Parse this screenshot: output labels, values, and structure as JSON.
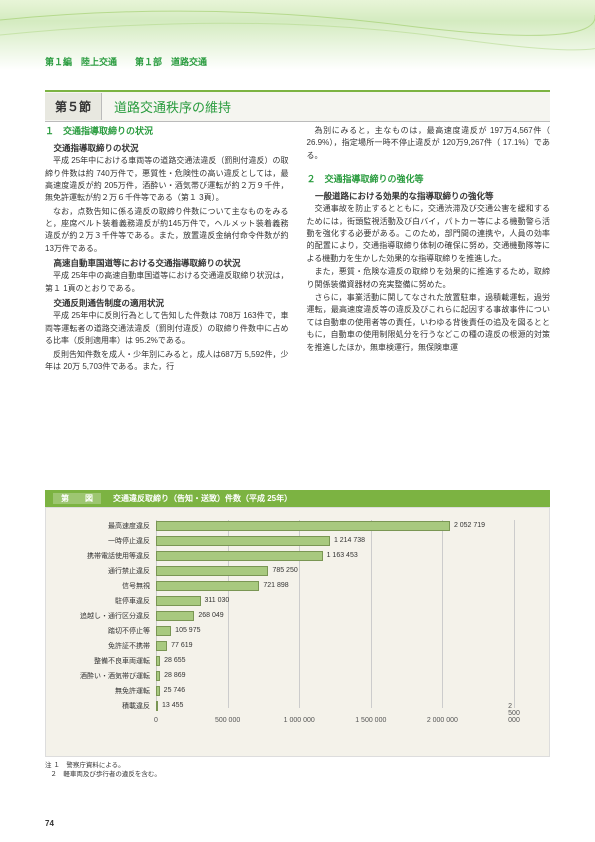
{
  "breadcrumb": "第１編　陸上交通　　第１部　道路交通",
  "section": {
    "num": "第５節",
    "title": "道路交通秩序の維持"
  },
  "left_col": {
    "h1": "１　交通指導取締りの状況",
    "s1": "交通指導取締りの状況",
    "p1": "平成 25年中における車両等の道路交通法違反（罰則付違反）の取締り件数は約 740万件で，悪質性・危険性の高い違反としては，最高速度違反が約 205万件，酒酔い・酒気帯び運転が約２万９千件，無免許運転が約２万６千件等である（第１ 3頁）。",
    "p2": "なお，点数告知に係る違反の取締り件数について主なものをみると，座席ベルト装着義務違反が約145万件で，ヘルメット装着義務違反が約２万３千件等である。また，放置違反金納付命令件数が約 13万件である。",
    "s2": "高速自動車国道等における交通指導取締りの状況",
    "p3": "平成 25年中の高速自動車国道等における交通違反取締り状況は，第１ 1頁のとおりである。",
    "s3": "交通反則通告制度の適用状況",
    "p4": "平成 25年中に反則行為として告知した件数は 708万 163件で，車両等運転者の道路交通法違反（罰則付違反）の取締り件数中に占める比率（反則適用率）は 95.2%である。",
    "p5": "反則告知件数を成人・少年別にみると，成人は687万 5,592件，少年は 20万 5,703件である。また，行"
  },
  "right_col": {
    "p1": "為別にみると，主なものは，最高速度違反が 197万4,567件（ 26.9%），指定場所一時不停止違反が 120万9,267件（ 17.1%）である。",
    "h2": "２　交通指導取締りの強化等",
    "s1": "一般道路における効果的な指導取締りの強化等",
    "p2": "交通事故を防止するとともに，交通渋滞及び交通公害を緩和するためには，街頭監視活動及び白バイ，パトカー等による機動警ら活動を強化する必要がある。このため，部門間の連携や，人員の効率的配置により，交通指導取締り体制の確保に努め，交通機動隊等による機動力を生かした効果的な指導取締りを推進した。",
    "p3": "また，悪質・危険な違反の取締りを効果的に推進するため，取締り関係装備資器材の充実整備に努めた。",
    "p4": "さらに，事業活動に関してなされた放置駐車，過積載運転，過労運転，最高速度違反等の違反及びこれらに起因する事故事件については自動車の使用者等の責任，いわゆる背後責任の追及を図るとともに，自動車の使用制限処分を行うなどこの種の違反の根源的対策を推進したほか，無車検運行，無保険車運"
  },
  "chart": {
    "header_badge": "第　　図",
    "header_title": "交通違反取締り（告知・送致）件数（平成 25年）",
    "x_max": 2500000,
    "categories": [
      "最高速度違反",
      "一時停止違反",
      "携帯電話使用等違反",
      "通行禁止違反",
      "信号無視",
      "駐停車違反",
      "追越し・通行区分違反",
      "踏切不停止等",
      "免許証不携帯",
      "整備不良車両運転",
      "酒酔い・酒気帯び運転",
      "無免許運転",
      "積載違反"
    ],
    "values": [
      2052719,
      1214738,
      1163453,
      785250,
      721898,
      311030,
      268049,
      105975,
      77619,
      28655,
      28869,
      25746,
      13455
    ],
    "x_ticks": [
      0,
      500000,
      1000000,
      1500000,
      2000000,
      2500000
    ],
    "x_tick_labels": [
      "0",
      "500 000",
      "1 000 000",
      "1 500 000",
      "2 000 000",
      "2 500 000"
    ],
    "bar_color": "#a8c97f",
    "background_color": "#f4f2ea"
  },
  "notes": {
    "prefix": "注",
    "n1": "１　警察庁資料による。",
    "n2": "２　軽車両及び歩行者の違反を含む。"
  },
  "page_num": "74"
}
